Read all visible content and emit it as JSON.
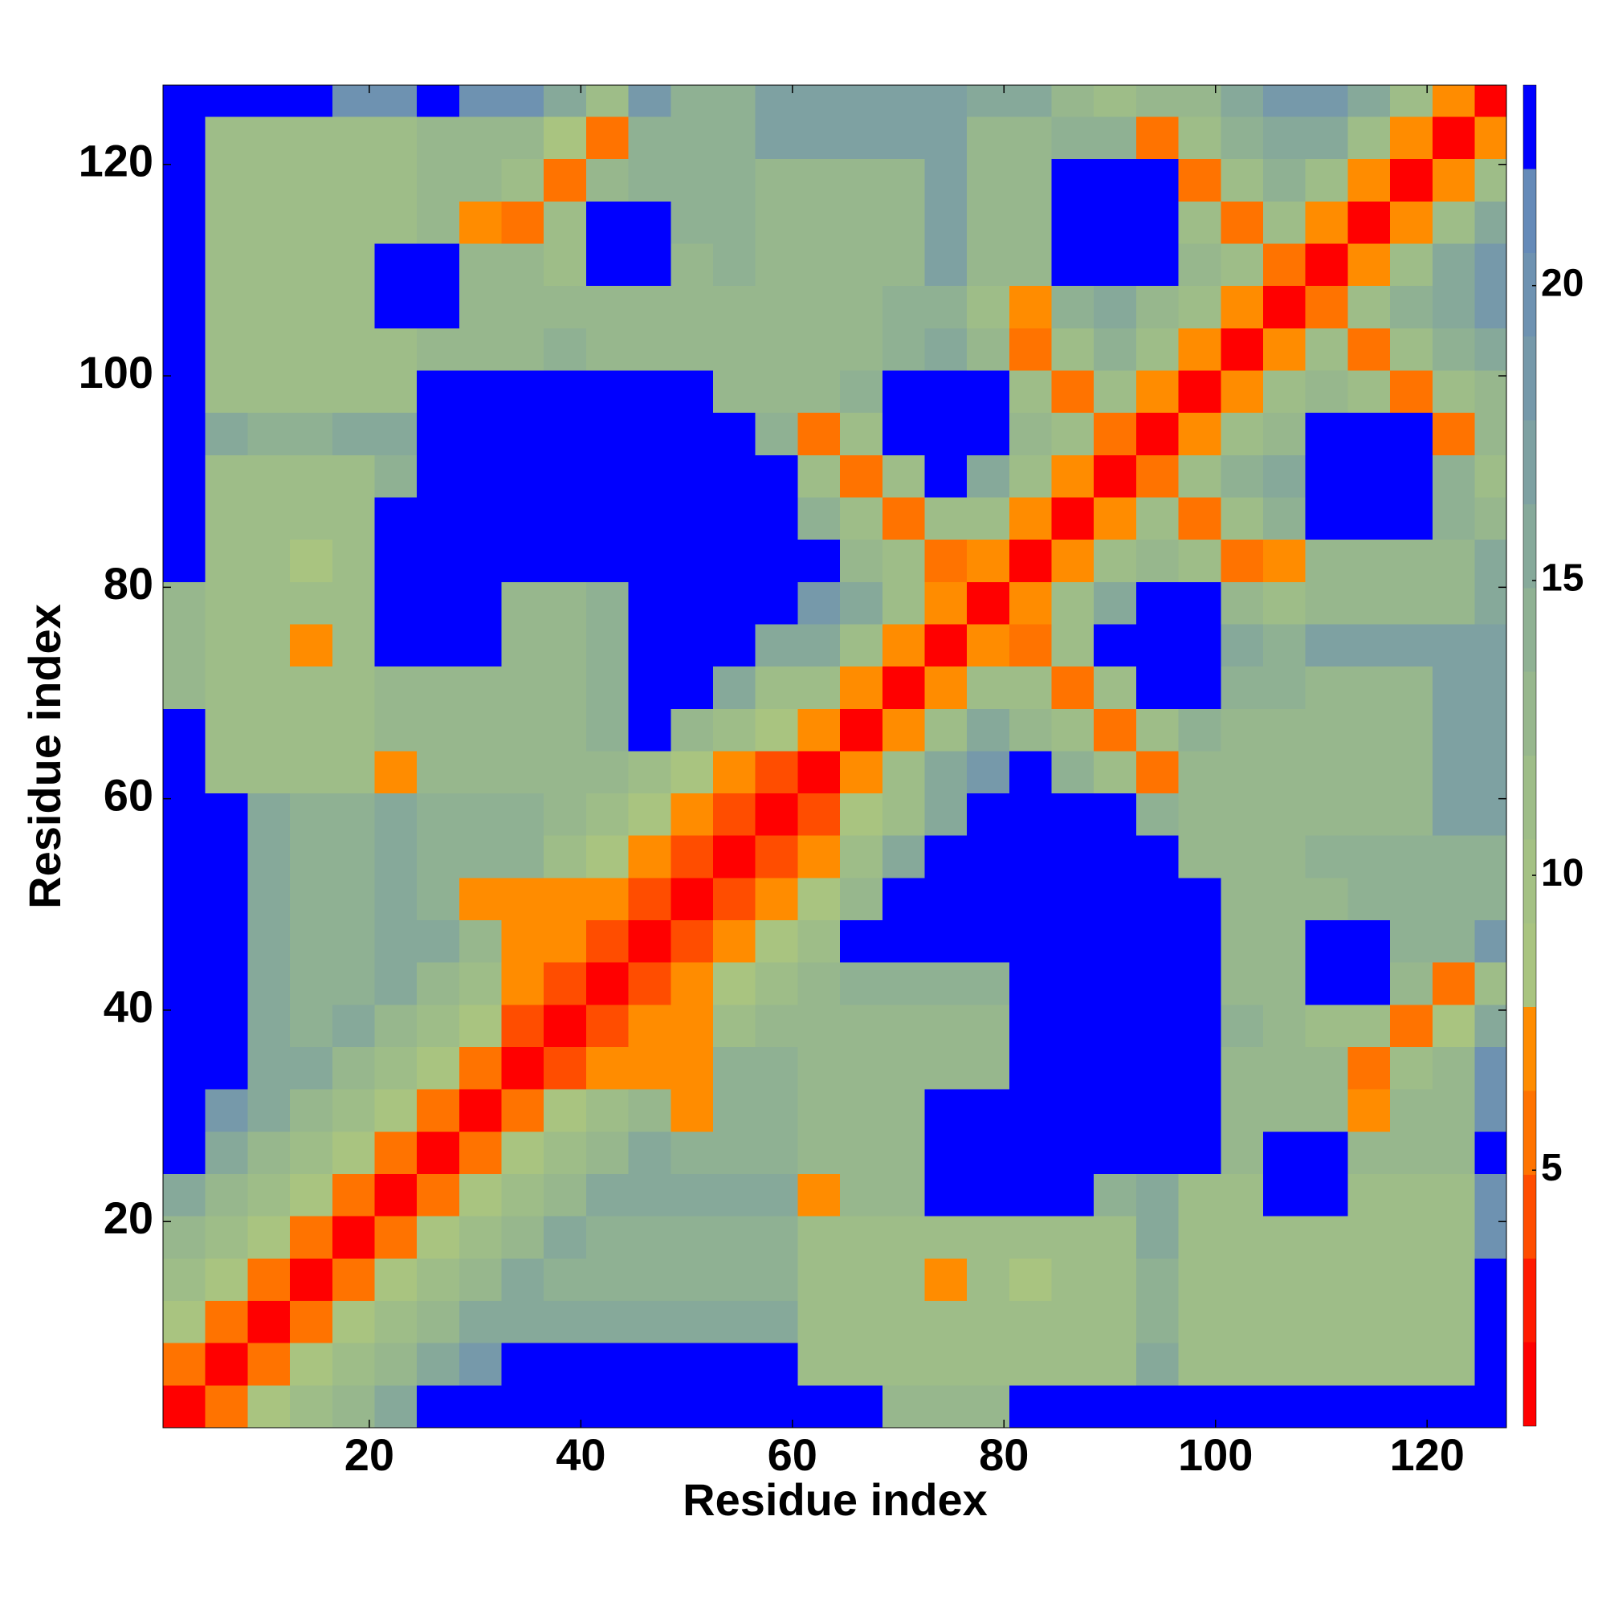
{
  "chart_data": {
    "type": "heatmap",
    "xlabel": "Residue index",
    "ylabel": "Residue index",
    "x_edges": [
      0.5,
      4.5,
      8.5,
      12.5,
      16.5,
      20.5,
      24.5,
      28.5,
      32.5,
      36.5,
      40.5,
      44.5,
      48.5,
      52.5,
      56.5,
      60.5,
      64.5,
      68.5,
      72.5,
      76.5,
      80.5,
      84.5,
      88.5,
      92.5,
      96.5,
      100.5,
      104.5,
      108.5,
      112.5,
      116.5,
      120.5,
      124.5,
      127.5
    ],
    "y_edges": [
      0.5,
      4.5,
      8.5,
      12.5,
      16.5,
      20.5,
      24.5,
      28.5,
      32.5,
      36.5,
      40.5,
      44.5,
      48.5,
      52.5,
      56.5,
      60.5,
      64.5,
      68.5,
      72.5,
      76.5,
      80.5,
      84.5,
      88.5,
      92.5,
      96.5,
      100.5,
      104.5,
      108.5,
      112.5,
      116.5,
      120.5,
      124.5,
      127.5
    ],
    "values": [
      [
        2,
        5,
        9,
        11,
        13,
        16,
        23,
        23,
        23,
        23,
        23,
        23,
        23,
        23,
        23,
        23,
        23,
        13,
        13,
        13,
        23,
        23,
        23,
        23,
        23,
        23,
        23,
        23,
        23,
        23,
        23,
        23
      ],
      [
        5,
        2,
        5,
        9,
        11,
        13,
        16,
        19,
        23,
        23,
        23,
        23,
        23,
        23,
        23,
        12,
        12,
        12,
        12,
        12,
        12,
        12,
        12,
        16,
        12,
        12,
        12,
        12,
        12,
        12,
        12,
        23
      ],
      [
        9,
        5,
        2,
        5,
        9,
        11,
        13,
        16,
        16,
        16,
        16,
        16,
        16,
        16,
        16,
        12,
        12,
        12,
        12,
        12,
        12,
        12,
        12,
        14,
        12,
        12,
        12,
        12,
        12,
        12,
        12,
        23
      ],
      [
        11,
        9,
        5,
        2,
        5,
        9,
        11,
        13,
        16,
        14,
        14,
        14,
        14,
        14,
        14,
        12,
        12,
        12,
        7,
        12,
        8,
        12,
        12,
        14,
        12,
        12,
        12,
        12,
        12,
        12,
        12,
        23
      ],
      [
        13,
        11,
        9,
        5,
        2,
        5,
        9,
        11,
        13,
        16,
        14,
        14,
        14,
        14,
        14,
        12,
        12,
        12,
        12,
        12,
        12,
        12,
        12,
        15,
        12,
        12,
        12,
        12,
        12,
        12,
        12,
        20
      ],
      [
        16,
        13,
        11,
        9,
        5,
        2,
        5,
        9,
        11,
        13,
        16,
        15,
        15,
        15,
        15,
        7,
        13,
        13,
        23,
        23,
        23,
        23,
        14,
        15,
        12,
        12,
        23,
        23,
        12,
        12,
        12,
        20
      ],
      [
        23,
        16,
        13,
        11,
        9,
        5,
        2,
        5,
        9,
        11,
        13,
        16,
        14,
        14,
        14,
        13,
        13,
        13,
        23,
        23,
        23,
        23,
        23,
        23,
        23,
        13,
        23,
        23,
        13,
        13,
        13,
        23
      ],
      [
        23,
        19,
        16,
        13,
        11,
        9,
        5,
        2,
        5,
        9,
        11,
        13,
        7,
        14,
        14,
        13,
        13,
        13,
        23,
        23,
        23,
        23,
        23,
        23,
        23,
        13,
        13,
        13,
        7,
        13,
        13,
        20
      ],
      [
        23,
        23,
        16,
        16,
        13,
        11,
        9,
        5,
        2,
        4,
        7,
        7,
        7,
        14,
        14,
        13,
        13,
        13,
        13,
        13,
        23,
        23,
        23,
        23,
        23,
        13,
        13,
        13,
        5,
        11,
        13,
        20
      ],
      [
        23,
        23,
        16,
        14,
        16,
        13,
        11,
        9,
        4,
        2,
        4,
        7,
        7,
        11,
        13,
        13,
        13,
        13,
        13,
        13,
        23,
        23,
        23,
        23,
        23,
        14,
        13,
        11,
        11,
        5,
        8,
        16
      ],
      [
        23,
        23,
        16,
        14,
        14,
        16,
        13,
        11,
        7,
        4,
        2,
        4,
        7,
        9,
        11,
        13,
        14,
        14,
        14,
        14,
        23,
        23,
        23,
        23,
        23,
        13,
        13,
        23,
        23,
        13,
        5,
        12
      ],
      [
        23,
        23,
        16,
        14,
        14,
        15,
        16,
        13,
        7,
        7,
        4,
        2,
        4,
        7,
        9,
        11,
        23,
        23,
        23,
        23,
        23,
        23,
        23,
        23,
        23,
        13,
        13,
        23,
        23,
        14,
        14,
        18
      ],
      [
        23,
        23,
        16,
        14,
        14,
        15,
        14,
        7,
        7,
        7,
        7,
        4,
        2,
        4,
        7,
        9,
        13,
        23,
        23,
        23,
        23,
        23,
        23,
        23,
        23,
        13,
        13,
        13,
        14,
        14,
        14,
        14
      ],
      [
        23,
        23,
        16,
        14,
        14,
        15,
        14,
        14,
        14,
        11,
        9,
        7,
        4,
        2,
        4,
        7,
        11,
        16,
        23,
        23,
        23,
        23,
        23,
        23,
        13,
        13,
        13,
        14,
        14,
        14,
        14,
        14
      ],
      [
        23,
        23,
        16,
        14,
        14,
        15,
        14,
        14,
        14,
        13,
        11,
        9,
        7,
        4,
        2,
        4,
        9,
        12,
        16,
        23,
        23,
        23,
        23,
        14,
        13,
        13,
        13,
        13,
        13,
        13,
        17,
        17
      ],
      [
        23,
        12,
        12,
        12,
        12,
        7,
        13,
        13,
        13,
        13,
        13,
        11,
        9,
        7,
        4,
        2,
        7,
        12,
        16,
        19,
        23,
        14,
        11,
        5,
        13,
        13,
        13,
        13,
        13,
        13,
        17,
        17
      ],
      [
        23,
        12,
        12,
        12,
        12,
        13,
        13,
        13,
        13,
        13,
        14,
        23,
        13,
        11,
        9,
        7,
        2,
        7,
        12,
        16,
        13,
        11,
        5,
        11,
        14,
        13,
        13,
        13,
        13,
        13,
        17,
        17
      ],
      [
        13,
        12,
        12,
        12,
        12,
        13,
        13,
        13,
        13,
        13,
        14,
        23,
        23,
        16,
        12,
        12,
        7,
        2,
        7,
        12,
        11,
        5,
        11,
        23,
        23,
        14,
        14,
        13,
        13,
        13,
        17,
        17
      ],
      [
        13,
        12,
        12,
        7,
        12,
        23,
        23,
        23,
        13,
        13,
        14,
        23,
        23,
        23,
        16,
        16,
        12,
        7,
        2,
        7,
        5,
        11,
        23,
        23,
        23,
        15,
        14,
        17,
        17,
        17,
        17,
        17
      ],
      [
        13,
        12,
        12,
        12,
        12,
        23,
        23,
        23,
        13,
        13,
        14,
        23,
        23,
        23,
        23,
        19,
        16,
        12,
        7,
        2,
        7,
        12,
        16,
        23,
        23,
        13,
        11,
        13,
        13,
        13,
        13,
        16
      ],
      [
        23,
        12,
        12,
        8,
        12,
        23,
        23,
        23,
        23,
        23,
        23,
        23,
        23,
        23,
        23,
        23,
        13,
        11,
        5,
        7,
        2,
        7,
        12,
        13,
        11,
        5,
        7,
        13,
        13,
        13,
        13,
        15
      ],
      [
        23,
        12,
        12,
        12,
        12,
        23,
        23,
        23,
        23,
        23,
        23,
        23,
        23,
        23,
        23,
        14,
        11,
        5,
        11,
        12,
        7,
        2,
        7,
        11,
        5,
        11,
        14,
        23,
        23,
        23,
        14,
        13
      ],
      [
        23,
        12,
        12,
        12,
        12,
        14,
        23,
        23,
        23,
        23,
        23,
        23,
        23,
        23,
        23,
        11,
        5,
        11,
        23,
        16,
        12,
        7,
        2,
        5,
        11,
        14,
        15,
        23,
        23,
        23,
        14,
        12
      ],
      [
        23,
        16,
        14,
        14,
        15,
        15,
        23,
        23,
        23,
        23,
        23,
        23,
        23,
        23,
        14,
        5,
        11,
        23,
        23,
        23,
        13,
        11,
        5,
        2,
        7,
        12,
        13,
        23,
        23,
        23,
        6,
        13
      ],
      [
        23,
        12,
        12,
        12,
        12,
        12,
        23,
        23,
        23,
        23,
        23,
        23,
        23,
        13,
        13,
        13,
        14,
        23,
        23,
        23,
        11,
        5,
        11,
        7,
        2,
        7,
        12,
        13,
        11,
        5,
        11,
        13
      ],
      [
        23,
        12,
        12,
        12,
        12,
        12,
        13,
        13,
        13,
        14,
        13,
        13,
        13,
        13,
        13,
        13,
        13,
        14,
        15,
        13,
        5,
        11,
        14,
        12,
        7,
        2,
        7,
        11,
        5,
        11,
        14,
        16
      ],
      [
        23,
        12,
        12,
        12,
        12,
        23,
        23,
        13,
        13,
        13,
        13,
        13,
        13,
        13,
        13,
        13,
        13,
        14,
        14,
        11,
        7,
        14,
        15,
        13,
        12,
        7,
        2,
        5,
        11,
        14,
        16,
        19
      ],
      [
        23,
        12,
        12,
        12,
        12,
        23,
        23,
        13,
        13,
        11,
        23,
        23,
        13,
        14,
        13,
        13,
        13,
        13,
        17,
        13,
        13,
        23,
        23,
        23,
        13,
        11,
        5,
        2,
        7,
        12,
        16,
        19
      ],
      [
        23,
        12,
        12,
        12,
        12,
        12,
        13,
        7,
        5,
        11,
        23,
        23,
        14,
        14,
        13,
        13,
        13,
        13,
        17,
        13,
        13,
        23,
        23,
        23,
        11,
        5,
        11,
        7,
        2,
        7,
        12,
        16
      ],
      [
        23,
        12,
        12,
        12,
        12,
        12,
        13,
        13,
        11,
        5,
        13,
        14,
        14,
        14,
        13,
        13,
        13,
        13,
        17,
        13,
        13,
        23,
        23,
        23,
        5,
        11,
        14,
        12,
        7,
        2,
        7,
        12
      ],
      [
        23,
        12,
        12,
        12,
        12,
        12,
        13,
        13,
        13,
        8,
        5,
        14,
        14,
        14,
        17,
        17,
        17,
        17,
        17,
        13,
        13,
        14,
        14,
        6,
        11,
        14,
        16,
        16,
        12,
        7,
        2,
        7
      ],
      [
        23,
        23,
        23,
        23,
        20,
        20,
        23,
        20,
        20,
        16,
        12,
        18,
        14,
        14,
        17,
        17,
        17,
        17,
        17,
        16,
        15,
        13,
        12,
        13,
        13,
        16,
        19,
        19,
        16,
        12,
        7,
        2
      ]
    ],
    "xlim": [
      0.5,
      127.5
    ],
    "ylim": [
      0.5,
      127.5
    ],
    "xticks": [
      20,
      40,
      60,
      80,
      100,
      120
    ],
    "yticks": [
      20,
      40,
      60,
      80,
      100,
      120
    ],
    "colorbar": {
      "clim": [
        0.66,
        23.4
      ],
      "ticks": [
        5,
        10,
        15,
        20
      ],
      "colors": [
        "#ff0000",
        "#ff1a00",
        "#ff4d00",
        "#ff7300",
        "#ff8c00",
        "#a9c480",
        "#a4c184",
        "#9ebd88",
        "#97b78d",
        "#8fb193",
        "#86a99a",
        "#7ea1a2",
        "#7699aa",
        "#6e92b1",
        "#658ab8",
        "#0000ff"
      ]
    }
  }
}
